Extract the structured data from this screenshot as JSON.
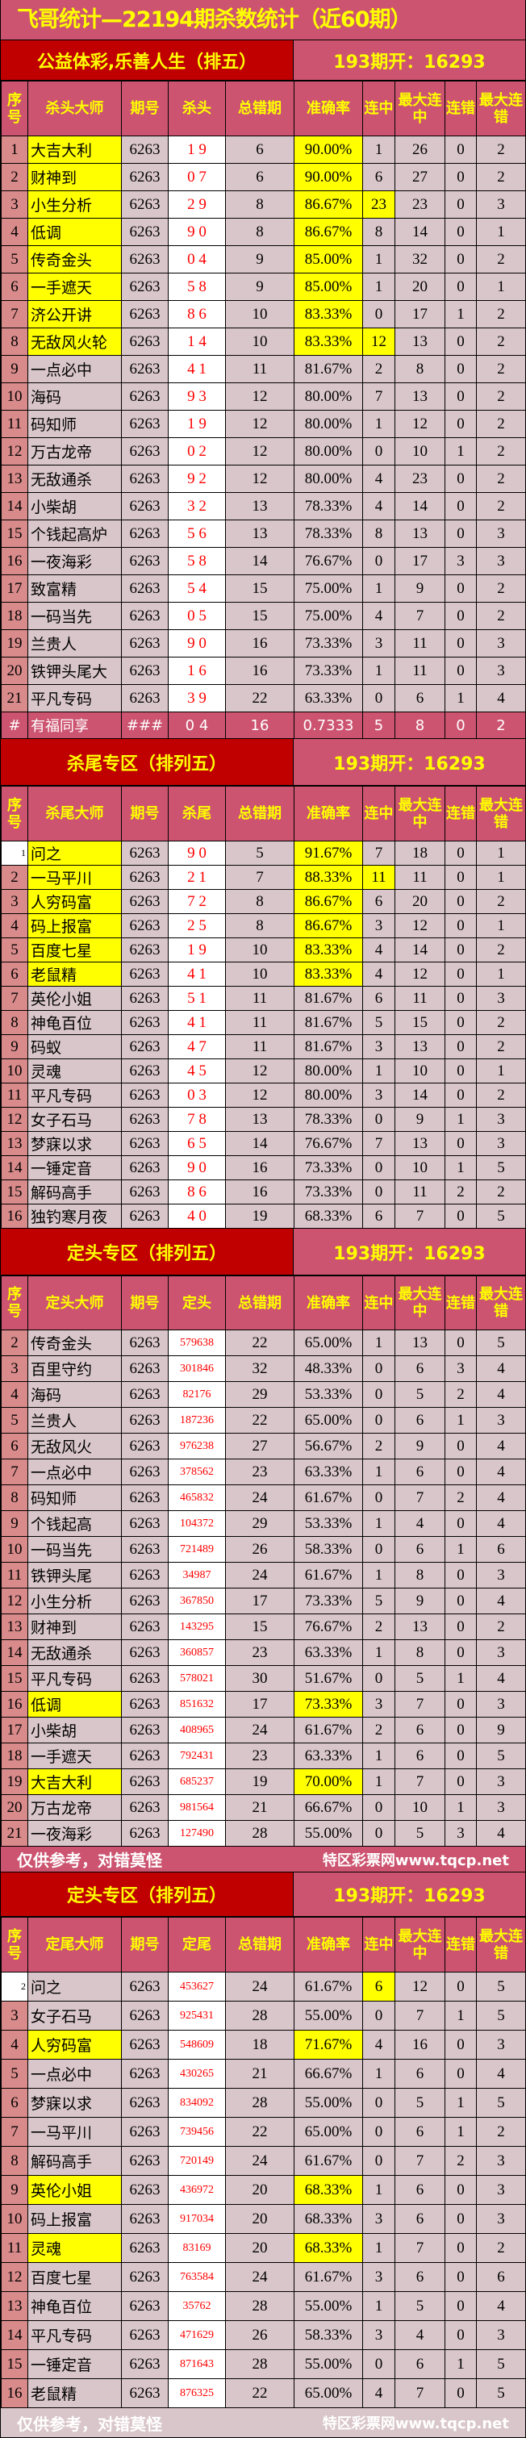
{
  "title": "飞哥统计—22194期杀数统计（近60期）",
  "colors": {
    "pink": "#cc5470",
    "dark_red": "#c00000",
    "row_bg": "#d9c6cb",
    "seq_bg": "#d98a8a",
    "highlight": "#ffff00",
    "pick_text": "#ff0000"
  },
  "sections": [
    {
      "title": "公益体彩,乐善人生（排五）",
      "open": "193期开：16293",
      "headers": [
        "序号",
        "杀头大师",
        "期号",
        "杀头",
        "总错期",
        "准确率",
        "连中",
        "最大连中",
        "连错",
        "最大连错"
      ],
      "rows": [
        [
          "1",
          "大吉大利",
          "6263",
          "1 9",
          "6",
          "90.00%",
          "1",
          "26",
          "0",
          "2",
          1,
          0
        ],
        [
          "2",
          "财神到",
          "6263",
          "0 7",
          "6",
          "90.00%",
          "6",
          "27",
          "0",
          "2",
          1,
          0
        ],
        [
          "3",
          "小生分析",
          "6263",
          "2 9",
          "8",
          "86.67%",
          "23",
          "23",
          "0",
          "3",
          1,
          1
        ],
        [
          "4",
          "低调",
          "6263",
          "9 0",
          "8",
          "86.67%",
          "8",
          "14",
          "0",
          "1",
          1,
          0
        ],
        [
          "5",
          "传奇金头",
          "6263",
          "0 4",
          "9",
          "85.00%",
          "1",
          "32",
          "0",
          "2",
          1,
          0
        ],
        [
          "6",
          "一手遮天",
          "6263",
          "5 8",
          "9",
          "85.00%",
          "1",
          "20",
          "0",
          "1",
          1,
          0
        ],
        [
          "7",
          "济公开讲",
          "6263",
          "8 6",
          "10",
          "83.33%",
          "0",
          "17",
          "1",
          "2",
          1,
          0
        ],
        [
          "8",
          "无敌风火轮",
          "6263",
          "1 4",
          "10",
          "83.33%",
          "12",
          "13",
          "0",
          "2",
          1,
          1
        ],
        [
          "9",
          "一点必中",
          "6263",
          "4 1",
          "11",
          "81.67%",
          "2",
          "8",
          "0",
          "2",
          0,
          0
        ],
        [
          "10",
          "海码",
          "6263",
          "9 3",
          "12",
          "80.00%",
          "7",
          "13",
          "0",
          "2",
          0,
          0
        ],
        [
          "11",
          "码知师",
          "6263",
          "1 9",
          "12",
          "80.00%",
          "1",
          "12",
          "0",
          "2",
          0,
          0
        ],
        [
          "12",
          "万古龙帝",
          "6263",
          "0 2",
          "12",
          "80.00%",
          "0",
          "10",
          "1",
          "2",
          0,
          0
        ],
        [
          "13",
          "无敌通杀",
          "6263",
          "9 2",
          "12",
          "80.00%",
          "4",
          "23",
          "0",
          "2",
          0,
          0
        ],
        [
          "14",
          "小柴胡",
          "6263",
          "3 2",
          "13",
          "78.33%",
          "4",
          "14",
          "0",
          "2",
          0,
          0
        ],
        [
          "15",
          "个钱起高炉",
          "6263",
          "5 6",
          "13",
          "78.33%",
          "8",
          "13",
          "0",
          "3",
          0,
          0
        ],
        [
          "16",
          "一夜海彩",
          "6263",
          "5 8",
          "14",
          "76.67%",
          "0",
          "17",
          "3",
          "3",
          0,
          0
        ],
        [
          "17",
          "致富精",
          "6263",
          "5 4",
          "15",
          "75.00%",
          "1",
          "9",
          "0",
          "2",
          0,
          0
        ],
        [
          "18",
          "一码当先",
          "6263",
          "0 5",
          "15",
          "75.00%",
          "4",
          "7",
          "0",
          "2",
          0,
          0
        ],
        [
          "19",
          "兰贵人",
          "6263",
          "9 0",
          "16",
          "73.33%",
          "3",
          "11",
          "0",
          "3",
          0,
          0
        ],
        [
          "20",
          "铁钾头尾大",
          "6263",
          "1 6",
          "16",
          "73.33%",
          "1",
          "11",
          "0",
          "3",
          0,
          0
        ],
        [
          "21",
          "平凡专码",
          "6263",
          "3 9",
          "22",
          "63.33%",
          "0",
          "6",
          "1",
          "4",
          0,
          0
        ]
      ],
      "summary": [
        "#",
        "有福同享",
        "###",
        "0 4",
        "16",
        "0.7333",
        "5",
        "8",
        "0",
        "2"
      ]
    },
    {
      "title": "杀尾专区（排列五）",
      "open": "193期开：16293",
      "headers": [
        "序号",
        "杀尾大师",
        "期号",
        "杀尾",
        "总错期",
        "准确率",
        "连中",
        "最大连中",
        "连错",
        "最大连错"
      ],
      "rows": [
        [
          "1",
          "问之",
          "6263",
          "9 0",
          "5",
          "91.67%",
          "7",
          "18",
          "0",
          "1",
          1,
          0
        ],
        [
          "2",
          "一马平川",
          "6263",
          "2 1",
          "7",
          "88.33%",
          "11",
          "11",
          "0",
          "1",
          1,
          1
        ],
        [
          "3",
          "人穷码富",
          "6263",
          "7 2",
          "8",
          "86.67%",
          "6",
          "20",
          "0",
          "2",
          1,
          0
        ],
        [
          "4",
          "码上报富",
          "6263",
          "2 5",
          "8",
          "86.67%",
          "3",
          "12",
          "0",
          "1",
          1,
          0
        ],
        [
          "5",
          "百度七星",
          "6263",
          "1 9",
          "10",
          "83.33%",
          "4",
          "14",
          "0",
          "2",
          1,
          0
        ],
        [
          "6",
          "老鼠精",
          "6263",
          "4 1",
          "10",
          "83.33%",
          "4",
          "12",
          "0",
          "1",
          1,
          0
        ],
        [
          "7",
          "英伦小姐",
          "6263",
          "5 1",
          "11",
          "81.67%",
          "6",
          "11",
          "0",
          "3",
          0,
          0
        ],
        [
          "8",
          "神龟百位",
          "6263",
          "4 1",
          "11",
          "81.67%",
          "5",
          "15",
          "0",
          "2",
          0,
          0
        ],
        [
          "9",
          "码蚁",
          "6263",
          "4 7",
          "11",
          "81.67%",
          "3",
          "13",
          "0",
          "2",
          0,
          0
        ],
        [
          "10",
          "灵魂",
          "6263",
          "4 5",
          "12",
          "80.00%",
          "1",
          "10",
          "0",
          "1",
          0,
          0
        ],
        [
          "11",
          "平凡专码",
          "6263",
          "0 3",
          "12",
          "80.00%",
          "3",
          "14",
          "0",
          "2",
          0,
          0
        ],
        [
          "12",
          "女子石马",
          "6263",
          "7 8",
          "13",
          "78.33%",
          "0",
          "9",
          "1",
          "3",
          0,
          0
        ],
        [
          "13",
          "梦寐以求",
          "6263",
          "6 5",
          "14",
          "76.67%",
          "7",
          "13",
          "0",
          "3",
          0,
          0
        ],
        [
          "14",
          "一锤定音",
          "6263",
          "9 0",
          "16",
          "73.33%",
          "0",
          "10",
          "1",
          "5",
          0,
          0
        ],
        [
          "15",
          "解码高手",
          "6263",
          "8 6",
          "16",
          "73.33%",
          "0",
          "11",
          "2",
          "2",
          0,
          0
        ],
        [
          "16",
          "独钓寒月夜",
          "6263",
          "4 0",
          "19",
          "68.33%",
          "6",
          "7",
          "0",
          "5",
          0,
          0
        ]
      ]
    },
    {
      "title": "定头专区（排列五）",
      "open": "193期开：16293",
      "headers": [
        "序号",
        "定头大师",
        "期号",
        "定头",
        "总错期",
        "准确率",
        "连中",
        "最大连中",
        "连错",
        "最大连错"
      ],
      "rows": [
        [
          "2",
          "传奇金头",
          "6263",
          "579638",
          "22",
          "65.00%",
          "1",
          "13",
          "0",
          "5",
          0,
          0
        ],
        [
          "3",
          "百里守约",
          "6263",
          "301846",
          "32",
          "48.33%",
          "0",
          "6",
          "3",
          "4",
          0,
          0
        ],
        [
          "4",
          "海码",
          "6263",
          "82176",
          "29",
          "53.33%",
          "0",
          "5",
          "2",
          "4",
          0,
          0
        ],
        [
          "5",
          "兰贵人",
          "6263",
          "187236",
          "22",
          "65.00%",
          "0",
          "6",
          "1",
          "3",
          0,
          0
        ],
        [
          "6",
          "无敌风火",
          "6263",
          "976238",
          "27",
          "56.67%",
          "2",
          "9",
          "0",
          "4",
          0,
          0
        ],
        [
          "7",
          "一点必中",
          "6263",
          "378562",
          "23",
          "63.33%",
          "1",
          "6",
          "0",
          "4",
          0,
          0
        ],
        [
          "8",
          "码知师",
          "6263",
          "465832",
          "24",
          "61.67%",
          "0",
          "7",
          "2",
          "4",
          0,
          0
        ],
        [
          "9",
          "个钱起高",
          "6263",
          "104372",
          "29",
          "53.33%",
          "1",
          "4",
          "0",
          "4",
          0,
          0
        ],
        [
          "10",
          "一码当先",
          "6263",
          "721489",
          "26",
          "58.33%",
          "0",
          "6",
          "1",
          "6",
          0,
          0
        ],
        [
          "11",
          "铁钾头尾",
          "6263",
          "34987",
          "24",
          "61.67%",
          "1",
          "8",
          "0",
          "3",
          0,
          0
        ],
        [
          "12",
          "小生分析",
          "6263",
          "367850",
          "17",
          "73.33%",
          "5",
          "9",
          "0",
          "4",
          0,
          0
        ],
        [
          "13",
          "财神到",
          "6263",
          "143295",
          "15",
          "76.67%",
          "2",
          "13",
          "0",
          "2",
          0,
          0
        ],
        [
          "14",
          "无敌通杀",
          "6263",
          "360857",
          "23",
          "63.33%",
          "1",
          "8",
          "0",
          "3",
          0,
          0
        ],
        [
          "15",
          "平凡专码",
          "6263",
          "578021",
          "30",
          "51.67%",
          "0",
          "5",
          "1",
          "4",
          0,
          0
        ],
        [
          "16",
          "低调",
          "6263",
          "851632",
          "17",
          "73.33%",
          "3",
          "7",
          "0",
          "3",
          1,
          0
        ],
        [
          "17",
          "小柴胡",
          "6263",
          "408965",
          "24",
          "61.67%",
          "2",
          "6",
          "0",
          "9",
          0,
          0
        ],
        [
          "18",
          "一手遮天",
          "6263",
          "792431",
          "23",
          "63.33%",
          "1",
          "6",
          "0",
          "5",
          0,
          0
        ],
        [
          "19",
          "大吉大利",
          "6263",
          "685237",
          "19",
          "70.00%",
          "1",
          "7",
          "0",
          "3",
          1,
          0
        ],
        [
          "20",
          "万古龙帝",
          "6263",
          "981564",
          "21",
          "66.67%",
          "0",
          "10",
          "1",
          "3",
          0,
          0
        ],
        [
          "21",
          "一夜海彩",
          "6263",
          "127490",
          "28",
          "55.00%",
          "0",
          "5",
          "3",
          "4",
          0,
          0
        ]
      ],
      "footer": {
        "note": "仅供参考，对错莫怪",
        "site": "特区彩票网www.tqcp.net"
      }
    },
    {
      "title": "定头专区（排列五）",
      "open": "193期开：16293",
      "headers": [
        "序号",
        "定尾大师",
        "期号",
        "定尾",
        "总错期",
        "准确率",
        "连中",
        "最大连中",
        "连错",
        "最大连错"
      ],
      "rows": [
        [
          "2",
          "问之",
          "6263",
          "453627",
          "24",
          "61.67%",
          "6",
          "12",
          "0",
          "5",
          0,
          1
        ],
        [
          "3",
          "女子石马",
          "6263",
          "925431",
          "28",
          "55.00%",
          "0",
          "7",
          "1",
          "5",
          0,
          0
        ],
        [
          "4",
          "人穷码富",
          "6263",
          "548609",
          "18",
          "71.67%",
          "4",
          "16",
          "0",
          "3",
          1,
          0
        ],
        [
          "5",
          "一点必中",
          "6263",
          "430265",
          "21",
          "66.67%",
          "1",
          "6",
          "0",
          "4",
          0,
          0
        ],
        [
          "6",
          "梦寐以求",
          "6263",
          "834092",
          "28",
          "55.00%",
          "0",
          "5",
          "1",
          "5",
          0,
          0
        ],
        [
          "7",
          "一马平川",
          "6263",
          "739456",
          "22",
          "65.00%",
          "0",
          "6",
          "1",
          "2",
          0,
          0
        ],
        [
          "8",
          "解码高手",
          "6263",
          "720149",
          "24",
          "61.67%",
          "0",
          "7",
          "2",
          "3",
          0,
          0
        ],
        [
          "9",
          "英伦小姐",
          "6263",
          "436972",
          "20",
          "68.33%",
          "1",
          "6",
          "0",
          "3",
          1,
          0
        ],
        [
          "10",
          "码上报富",
          "6263",
          "917034",
          "20",
          "68.33%",
          "3",
          "6",
          "0",
          "3",
          0,
          0
        ],
        [
          "11",
          "灵魂",
          "6263",
          "83169",
          "20",
          "68.33%",
          "1",
          "7",
          "0",
          "2",
          1,
          0
        ],
        [
          "12",
          "百度七星",
          "6263",
          "763584",
          "24",
          "61.67%",
          "3",
          "6",
          "0",
          "6",
          0,
          0
        ],
        [
          "13",
          "神龟百位",
          "6263",
          "35762",
          "28",
          "55.00%",
          "1",
          "5",
          "0",
          "4",
          0,
          0
        ],
        [
          "14",
          "平凡专码",
          "6263",
          "471629",
          "26",
          "58.33%",
          "3",
          "4",
          "0",
          "3",
          0,
          0
        ],
        [
          "15",
          "一锤定音",
          "6263",
          "871643",
          "28",
          "55.00%",
          "0",
          "6",
          "1",
          "5",
          0,
          0
        ],
        [
          "16",
          "老鼠精",
          "6263",
          "876325",
          "22",
          "65.00%",
          "4",
          "7",
          "0",
          "5",
          0,
          0
        ]
      ],
      "footer": {
        "note": "仅供参考，对错莫怪",
        "site": "特区彩票网www.tqcp.net"
      }
    }
  ]
}
